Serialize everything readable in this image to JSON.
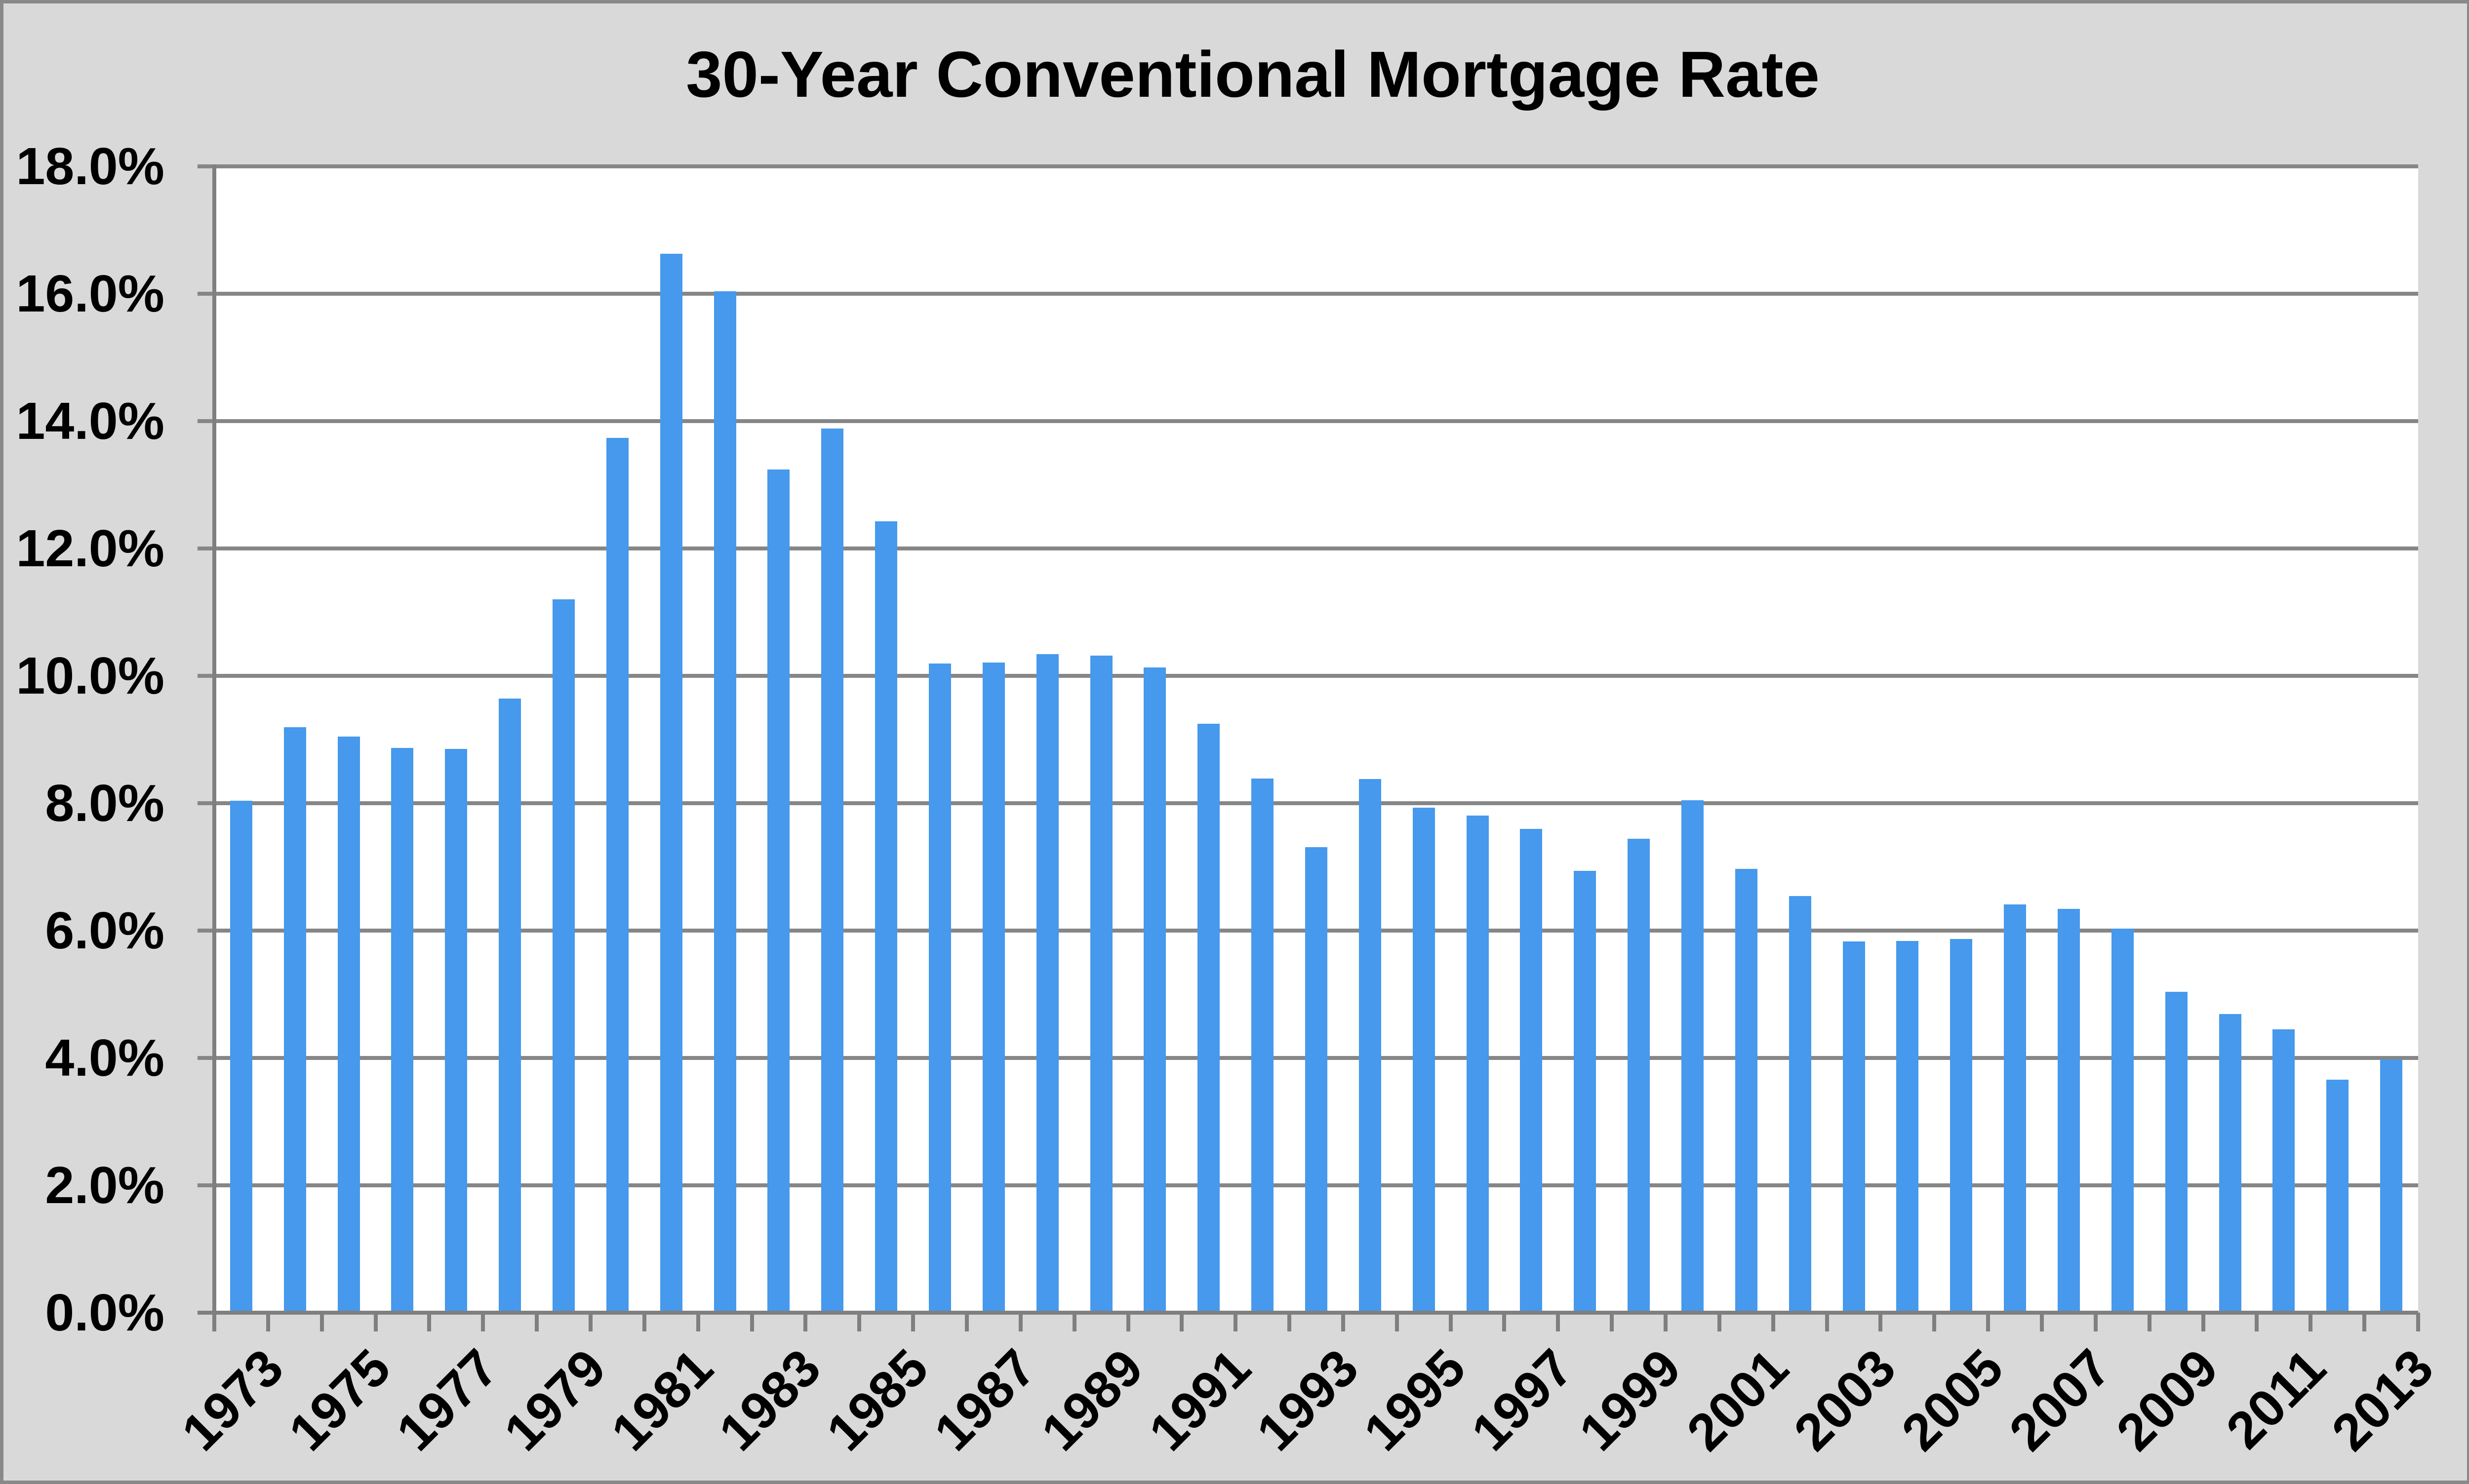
{
  "chart_data": {
    "type": "bar",
    "title": "30-Year Conventional Mortgage Rate",
    "categories": [
      "1973",
      "1974",
      "1975",
      "1976",
      "1977",
      "1978",
      "1979",
      "1980",
      "1981",
      "1982",
      "1983",
      "1984",
      "1985",
      "1986",
      "1987",
      "1988",
      "1989",
      "1990",
      "1991",
      "1992",
      "1993",
      "1994",
      "1995",
      "1996",
      "1997",
      "1998",
      "1999",
      "2000",
      "2001",
      "2002",
      "2003",
      "2004",
      "2005",
      "2006",
      "2007",
      "2008",
      "2009",
      "2010",
      "2011",
      "2012",
      "2013"
    ],
    "values": [
      8.04,
      9.19,
      9.05,
      8.87,
      8.85,
      9.64,
      11.2,
      13.74,
      16.63,
      16.04,
      13.24,
      13.88,
      12.43,
      10.19,
      10.21,
      10.34,
      10.32,
      10.13,
      9.25,
      8.39,
      7.31,
      8.38,
      7.93,
      7.81,
      7.6,
      6.94,
      7.44,
      8.05,
      6.97,
      6.54,
      5.83,
      5.84,
      5.87,
      6.41,
      6.34,
      6.03,
      5.04,
      4.69,
      4.45,
      3.66,
      3.98
    ],
    "xlabel": "",
    "ylabel": "",
    "ylim": [
      0,
      18
    ],
    "y_tick_step": 2,
    "y_tick_labels": [
      "0.0%",
      "2.0%",
      "4.0%",
      "6.0%",
      "8.0%",
      "10.0%",
      "12.0%",
      "14.0%",
      "16.0%",
      "18.0%"
    ],
    "x_axis_labels": [
      "1973",
      "1975",
      "1977",
      "1979",
      "1981",
      "1983",
      "1985",
      "1987",
      "1989",
      "1991",
      "1993",
      "1995",
      "1997",
      "1999",
      "2001",
      "2003",
      "2005",
      "2007",
      "2009",
      "2011",
      "2013"
    ],
    "grid": "horizontal",
    "legend": "none",
    "bar_color": "#4699EC",
    "grid_color": "#868686",
    "axis_color": "#7F7F7F",
    "plot_bg_color": "#FFFFFF",
    "chart_bg_color": "#D9D9D9",
    "frame_border_color": "#898989",
    "title_color": "#000000",
    "label_color": "#000000"
  }
}
